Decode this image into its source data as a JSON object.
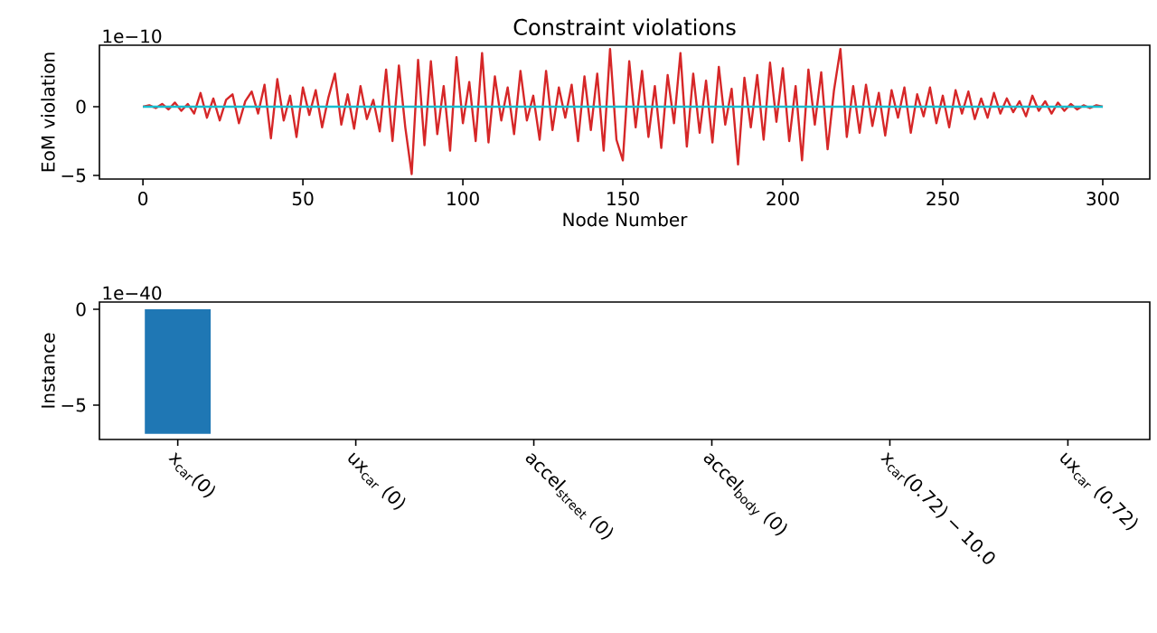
{
  "chart_data": [
    {
      "type": "line",
      "title": "Constraint violations",
      "xlabel": "Node Number",
      "ylabel": "EoM violation",
      "annotations": [
        "1e−10"
      ],
      "xlim": [
        -13.6,
        314.7
      ],
      "ylim": [
        -5.26,
        4.47
      ],
      "xticks": [
        0,
        50,
        100,
        150,
        200,
        250,
        300
      ],
      "yticks": [
        {
          "value": -5,
          "label": "−5"
        },
        0
      ],
      "series": [
        {
          "color": "#d62728",
          "x": [
            0,
            2,
            4,
            6,
            8,
            10,
            12,
            14,
            16,
            18,
            20,
            22,
            24,
            26,
            28,
            30,
            32,
            34,
            36,
            38,
            40,
            42,
            44,
            46,
            48,
            50,
            52,
            54,
            56,
            58,
            60,
            62,
            64,
            66,
            68,
            70,
            72,
            74,
            76,
            78,
            80,
            82,
            84,
            86,
            88,
            90,
            92,
            94,
            96,
            98,
            100,
            102,
            104,
            106,
            108,
            110,
            112,
            114,
            116,
            118,
            120,
            122,
            124,
            126,
            128,
            130,
            132,
            134,
            136,
            138,
            140,
            142,
            144,
            146,
            148,
            150,
            152,
            154,
            156,
            158,
            160,
            162,
            164,
            166,
            168,
            170,
            172,
            174,
            176,
            178,
            180,
            182,
            184,
            186,
            188,
            190,
            192,
            194,
            196,
            198,
            200,
            202,
            204,
            206,
            208,
            210,
            212,
            214,
            216,
            218,
            220,
            222,
            224,
            226,
            228,
            230,
            232,
            234,
            236,
            238,
            240,
            242,
            244,
            246,
            248,
            250,
            252,
            254,
            256,
            258,
            260,
            262,
            264,
            266,
            268,
            270,
            272,
            274,
            276,
            278,
            280,
            282,
            284,
            286,
            288,
            290,
            292,
            294,
            296,
            298,
            300
          ],
          "values": [
            0,
            0.1,
            -0.1,
            0.2,
            -0.2,
            0.3,
            -0.3,
            0.2,
            -0.5,
            1.0,
            -0.8,
            0.6,
            -1.0,
            0.5,
            0.9,
            -1.2,
            0.4,
            1.1,
            -0.5,
            1.6,
            -2.3,
            2.0,
            -1.0,
            0.8,
            -2.2,
            1.4,
            -0.6,
            1.2,
            -1.5,
            0.7,
            2.4,
            -1.3,
            0.9,
            -1.6,
            1.5,
            -0.9,
            0.5,
            -1.8,
            2.7,
            -2.5,
            3.0,
            -1.5,
            -4.9,
            3.4,
            -2.8,
            3.3,
            -2.0,
            1.5,
            -3.2,
            3.6,
            -1.2,
            1.8,
            -2.5,
            3.9,
            -2.6,
            2.2,
            -1.0,
            1.4,
            -2.0,
            2.6,
            -1.0,
            0.8,
            -2.4,
            2.6,
            -1.7,
            1.4,
            -0.8,
            1.6,
            -2.5,
            2.2,
            -1.7,
            2.4,
            -3.2,
            4.2,
            -2.4,
            -3.9,
            3.3,
            -1.5,
            2.6,
            -2.2,
            1.5,
            -3.0,
            2.3,
            -1.2,
            3.9,
            -2.9,
            2.4,
            -1.9,
            1.9,
            -2.6,
            2.9,
            -1.3,
            1.3,
            -4.2,
            2.1,
            -1.5,
            2.3,
            -2.4,
            3.2,
            -1.1,
            2.8,
            -2.5,
            1.5,
            -3.9,
            2.7,
            -1.3,
            2.5,
            -3.1,
            1.2,
            4.2,
            -2.2,
            1.5,
            -1.9,
            1.6,
            -1.4,
            1.0,
            -2.1,
            1.2,
            -0.8,
            1.4,
            -1.9,
            0.9,
            -0.7,
            1.4,
            -1.2,
            0.8,
            -1.5,
            1.2,
            -0.5,
            1.1,
            -0.9,
            0.6,
            -0.8,
            1.0,
            -0.5,
            0.6,
            -0.4,
            0.4,
            -0.7,
            0.8,
            -0.3,
            0.4,
            -0.5,
            0.3,
            -0.3,
            0.2,
            -0.2,
            0.1,
            -0.1,
            0.1,
            0
          ]
        },
        {
          "color": "#17becf",
          "x": [
            0,
            300
          ],
          "values": [
            0,
            0
          ]
        }
      ]
    },
    {
      "type": "bar",
      "ylabel": "Instance",
      "annotations": [
        "1e−40"
      ],
      "color": "#1f77b4",
      "categories": [
        "x$_{car}$(0)",
        "ux$_{car}$ (0)",
        "accel$_{street}$ (0)",
        "accel$_{body}$ (0)",
        "x$_{car}$(0.72) − 10.0",
        "ux$_{car}$ (0.72)"
      ],
      "values": [
        -6.5,
        0,
        0,
        0,
        0,
        0
      ],
      "ylim": [
        -6.79,
        0.38
      ],
      "yticks": [
        {
          "value": -5,
          "label": "−5"
        },
        0
      ]
    }
  ]
}
